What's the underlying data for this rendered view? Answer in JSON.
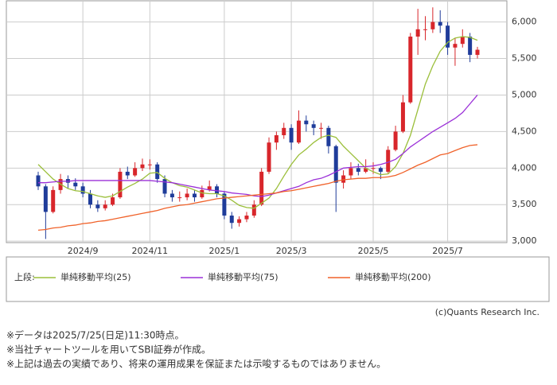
{
  "chart_data": {
    "type": "candlestick",
    "categories": [
      null,
      null,
      null,
      null,
      null,
      null,
      "2024/9",
      null,
      null,
      null,
      null,
      null,
      null,
      null,
      null,
      "2024/11",
      null,
      null,
      null,
      null,
      null,
      null,
      null,
      null,
      null,
      "2025/1",
      null,
      null,
      null,
      null,
      null,
      null,
      null,
      null,
      "2025/3",
      null,
      null,
      null,
      null,
      null,
      null,
      null,
      null,
      null,
      null,
      "2025/5",
      null,
      null,
      null,
      null,
      null,
      null,
      null,
      null,
      null,
      "2025/7",
      null,
      null,
      null,
      null
    ],
    "ylim": [
      2980,
      6290
    ],
    "yticks": [
      {
        "value": 3000,
        "label": "3,000"
      },
      {
        "value": 3500,
        "label": "3,500"
      },
      {
        "value": 4000,
        "label": "4,000"
      },
      {
        "value": 4500,
        "label": "4,500"
      },
      {
        "value": 5000,
        "label": "5,000"
      },
      {
        "value": 5500,
        "label": "5,500"
      },
      {
        "value": 6000,
        "label": "6,000"
      }
    ],
    "grid": true,
    "up_color": "#d8262b",
    "down_color": "#1f3c9a",
    "open": [
      3900,
      3750,
      3400,
      3700,
      3850,
      3800,
      3750,
      3650,
      3500,
      3450,
      3500,
      3600,
      3950,
      3900,
      4000,
      4050,
      4050,
      3850,
      3650,
      3600,
      3600,
      3650,
      3600,
      3700,
      3750,
      3650,
      3350,
      3250,
      3300,
      3350,
      3500,
      3950,
      4350,
      4450,
      4550,
      4350,
      4650,
      4600,
      4550,
      4550,
      4300,
      3800,
      3900,
      4000,
      3950,
      4000,
      4000,
      3950,
      4250,
      4500,
      4900,
      5800,
      5900,
      5900,
      6000,
      5950,
      5650,
      5700,
      5800,
      5550
    ],
    "high": [
      3950,
      3780,
      3750,
      3920,
      3900,
      3860,
      3800,
      3700,
      3560,
      3560,
      3650,
      4000,
      4020,
      4080,
      4130,
      4120,
      4080,
      3900,
      3700,
      3680,
      3720,
      3700,
      3760,
      3830,
      3780,
      3680,
      3400,
      3340,
      3400,
      3560,
      4000,
      4420,
      4500,
      4620,
      4600,
      4790,
      4720,
      4650,
      4620,
      4580,
      4320,
      3970,
      4080,
      4060,
      4120,
      4080,
      4020,
      4300,
      4580,
      5000,
      5850,
      6180,
      6080,
      6200,
      6160,
      6000,
      5780,
      5900,
      5850,
      5660
    ],
    "low": [
      3700,
      3030,
      3380,
      3650,
      3720,
      3700,
      3600,
      3450,
      3400,
      3420,
      3480,
      3580,
      3850,
      3880,
      3960,
      3980,
      3800,
      3600,
      3540,
      3540,
      3560,
      3540,
      3580,
      3680,
      3600,
      3300,
      3170,
      3200,
      3260,
      3320,
      3480,
      3920,
      4250,
      4400,
      4250,
      4330,
      4500,
      4450,
      4400,
      4200,
      3400,
      3720,
      3850,
      3900,
      3930,
      3920,
      3850,
      3930,
      4230,
      4480,
      4880,
      5550,
      5750,
      5850,
      5850,
      5550,
      5400,
      5650,
      5450,
      5500
    ],
    "close": [
      3750,
      3400,
      3700,
      3850,
      3800,
      3750,
      3650,
      3500,
      3450,
      3500,
      3600,
      3950,
      3900,
      4000,
      4050,
      4050,
      3850,
      3650,
      3600,
      3600,
      3650,
      3600,
      3700,
      3750,
      3650,
      3350,
      3250,
      3300,
      3350,
      3500,
      3950,
      4350,
      4450,
      4550,
      4350,
      4650,
      4600,
      4550,
      4550,
      4300,
      3800,
      3900,
      4000,
      3950,
      4000,
      4000,
      3950,
      4250,
      4500,
      4900,
      5800,
      5900,
      5900,
      6000,
      5950,
      5650,
      5700,
      5800,
      5550,
      5620
    ],
    "legend_title": "上段:",
    "series": [
      {
        "name": "単純移動平均(25)",
        "color": "#9bbf3a",
        "values": [
          4050,
          3950,
          3850,
          3780,
          3720,
          3690,
          3680,
          3650,
          3620,
          3600,
          3620,
          3680,
          3740,
          3790,
          3850,
          3930,
          3940,
          3860,
          3800,
          3760,
          3740,
          3700,
          3660,
          3650,
          3650,
          3620,
          3560,
          3490,
          3460,
          3450,
          3520,
          3590,
          3720,
          3890,
          4050,
          4180,
          4260,
          4350,
          4420,
          4450,
          4420,
          4300,
          4200,
          4100,
          4000,
          3950,
          3910,
          3920,
          4020,
          4200,
          4450,
          4800,
          5150,
          5400,
          5600,
          5720,
          5780,
          5800,
          5790,
          5750
        ]
      },
      {
        "name": "単純移動平均(75)",
        "color": "#9b30d8",
        "values": [
          3800,
          3800,
          3810,
          3820,
          3820,
          3830,
          3830,
          3830,
          3830,
          3830,
          3830,
          3830,
          3830,
          3830,
          3830,
          3830,
          3820,
          3810,
          3800,
          3780,
          3760,
          3740,
          3720,
          3700,
          3690,
          3680,
          3660,
          3650,
          3640,
          3620,
          3610,
          3630,
          3660,
          3690,
          3720,
          3750,
          3800,
          3840,
          3860,
          3900,
          3950,
          4000,
          4010,
          4020,
          4020,
          4030,
          4050,
          4080,
          4120,
          4200,
          4290,
          4360,
          4430,
          4500,
          4560,
          4620,
          4680,
          4760,
          4880,
          5000
        ]
      },
      {
        "name": "単純移動平均(200)",
        "color": "#f0622a",
        "values": [
          3150,
          3160,
          3180,
          3190,
          3210,
          3220,
          3240,
          3250,
          3270,
          3280,
          3300,
          3320,
          3340,
          3360,
          3380,
          3400,
          3420,
          3450,
          3470,
          3490,
          3500,
          3520,
          3540,
          3560,
          3580,
          3590,
          3600,
          3610,
          3620,
          3630,
          3640,
          3650,
          3660,
          3680,
          3690,
          3710,
          3730,
          3750,
          3770,
          3790,
          3820,
          3840,
          3850,
          3860,
          3860,
          3870,
          3870,
          3880,
          3900,
          3940,
          3990,
          4040,
          4080,
          4130,
          4180,
          4200,
          4240,
          4280,
          4310,
          4320
        ]
      }
    ],
    "source": "(c)Quants Research Inc."
  },
  "notes": [
    "※データは2025/7/25(日足)11:30時点。",
    "※当社チャートツールを用いてSBI証券が作成。",
    "※上記は過去の実績であり、将来の運用成果を保証または示唆するものではありません。"
  ]
}
